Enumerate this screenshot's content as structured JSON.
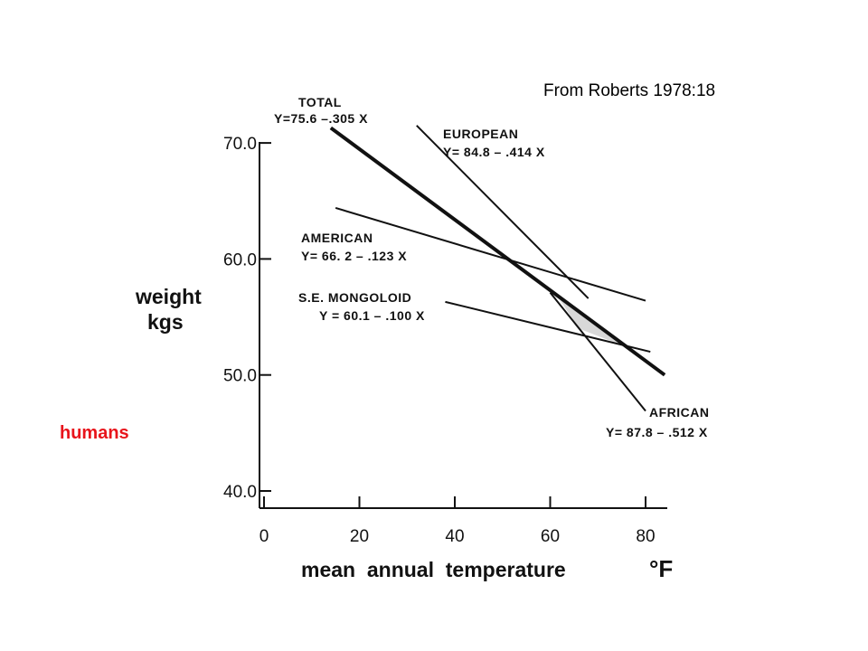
{
  "annotation": "From Roberts 1978:18",
  "side_label": "humans",
  "chart_data": {
    "type": "line",
    "title": "",
    "xlabel": "mean  annual  temperature",
    "xlabel_unit": "°F",
    "ylabel_line1": "weight",
    "ylabel_line2": "kgs",
    "xlim": [
      0,
      85
    ],
    "ylim": [
      40,
      70
    ],
    "x_ticks": [
      0,
      20,
      40,
      60,
      80
    ],
    "x_tick_labels": [
      "0",
      "20",
      "40",
      "60",
      "80"
    ],
    "y_ticks": [
      40,
      50,
      60,
      70
    ],
    "y_tick_labels": [
      "40.0",
      "50.0",
      "60.0",
      "70.0"
    ],
    "grid": false,
    "legend": "inline labels",
    "series": [
      {
        "name": "TOTAL",
        "equation": "Y=75.6 –.305 X",
        "x": [
          14,
          84
        ],
        "y": [
          71.3,
          50.0
        ],
        "style": "thick"
      },
      {
        "name": "EUROPEAN",
        "equation": "Y= 84.8 – .414 X",
        "x": [
          32,
          68
        ],
        "y": [
          71.5,
          56.6
        ],
        "style": "thin"
      },
      {
        "name": "AMERICAN",
        "equation": "Y= 66. 2 – .123 X",
        "x": [
          15,
          80
        ],
        "y": [
          64.4,
          56.4
        ],
        "style": "thin"
      },
      {
        "name": "S.E. MONGOLOID",
        "equation": "Y = 60.1 – .100 X",
        "x": [
          38,
          81
        ],
        "y": [
          56.3,
          52.0
        ],
        "style": "thin"
      },
      {
        "name": "AFRICAN",
        "equation": "Y= 87.8 – .512 X",
        "x": [
          60,
          80
        ],
        "y": [
          57.1,
          46.9
        ],
        "style": "thin"
      }
    ],
    "shaded_region": {
      "x": [
        62,
        74.8,
        66
      ],
      "y": [
        56.5,
        52.6,
        54.0
      ],
      "color": "#d8d8d8"
    }
  }
}
